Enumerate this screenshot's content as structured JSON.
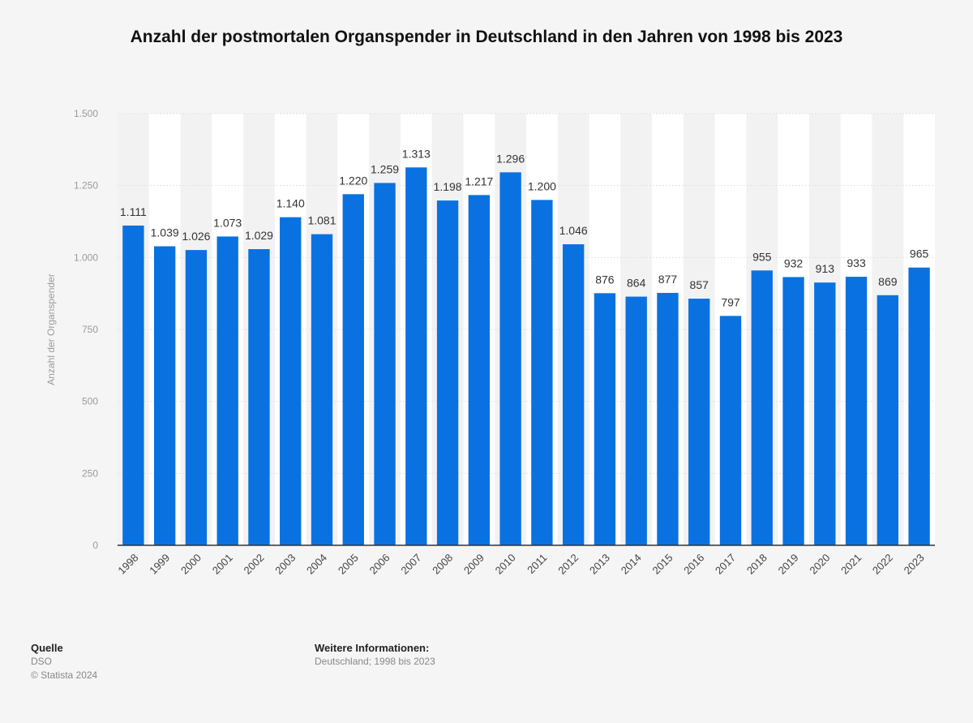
{
  "chart_data": {
    "type": "bar",
    "title": "Anzahl der postmortalen Organspender in Deutschland in den Jahren von 1998 bis 2023",
    "xlabel": "",
    "ylabel": "Anzahl der Organspender",
    "ylim": [
      0,
      1500
    ],
    "yticks": [
      0,
      250,
      500,
      750,
      1000,
      1250,
      1500
    ],
    "ytick_labels": [
      "0",
      "250",
      "500",
      "750",
      "1.000",
      "1.250",
      "1.500"
    ],
    "categories": [
      "1998",
      "1999",
      "2000",
      "2001",
      "2002",
      "2003",
      "2004",
      "2005",
      "2006",
      "2007",
      "2008",
      "2009",
      "2010",
      "2011",
      "2012",
      "2013",
      "2014",
      "2015",
      "2016",
      "2017",
      "2018",
      "2019",
      "2020",
      "2021",
      "2022",
      "2023"
    ],
    "values": [
      1111,
      1039,
      1026,
      1073,
      1029,
      1140,
      1081,
      1220,
      1259,
      1313,
      1198,
      1217,
      1296,
      1200,
      1046,
      876,
      864,
      877,
      857,
      797,
      955,
      932,
      913,
      933,
      869,
      965
    ],
    "value_labels": [
      "1.111",
      "1.039",
      "1.026",
      "1.073",
      "1.029",
      "1.140",
      "1.081",
      "1.220",
      "1.259",
      "1.313",
      "1.198",
      "1.217",
      "1.296",
      "1.200",
      "1.046",
      "876",
      "864",
      "877",
      "857",
      "797",
      "955",
      "932",
      "913",
      "933",
      "869",
      "965"
    ],
    "bar_color": "#0a72e0",
    "grid": true
  },
  "footer": {
    "source_heading": "Quelle",
    "source_name": "DSO",
    "copyright": "© Statista 2024",
    "info_heading": "Weitere Informationen:",
    "info_text": "Deutschland; 1998 bis 2023"
  }
}
